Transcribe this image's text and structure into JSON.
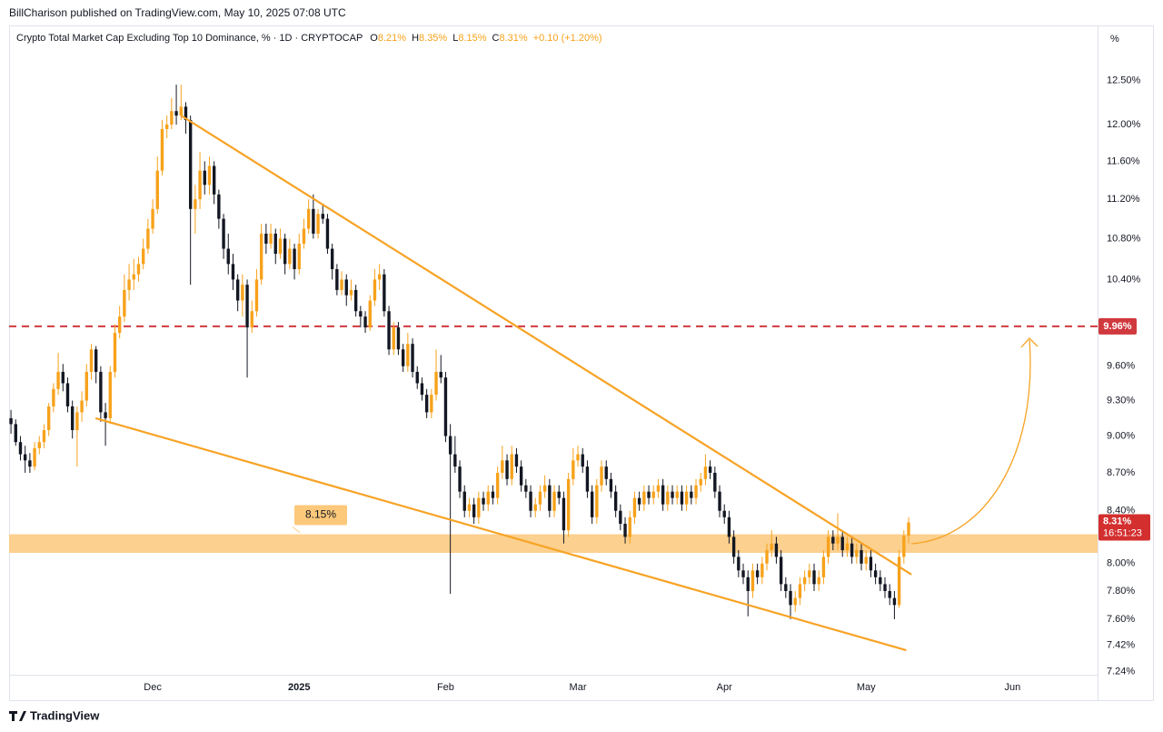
{
  "header": {
    "author_line": "BillCharison published on TradingView.com, May 10, 2025 07:08 UTC"
  },
  "footer": {
    "brand": "TradingView"
  },
  "chart_data": {
    "type": "candlestick",
    "title": "Crypto Total Market Cap Excluding Top 10 Dominance, % · 1D · CRYPTOCAP",
    "ohlc_readout": [
      {
        "key": "O",
        "text": "8.21%"
      },
      {
        "key": "H",
        "text": "8.35%"
      },
      {
        "key": "L",
        "text": "8.15%"
      },
      {
        "key": "C",
        "text": "8.31%"
      }
    ],
    "change": "+0.10 (+1.20%)",
    "y_unit": "%",
    "up_color": "#f7a21b",
    "down_color": "#131722",
    "log_scale": true,
    "grid": false,
    "ylim": [
      7.22,
      13.15
    ],
    "yticks": [
      {
        "value": 12.5,
        "label": "12.50%"
      },
      {
        "value": 12,
        "label": "12.00%"
      },
      {
        "value": 11.6,
        "label": "11.60%"
      },
      {
        "value": 11.2,
        "label": "11.20%"
      },
      {
        "value": 10.8,
        "label": "10.80%"
      },
      {
        "value": 10.4,
        "label": "10.40%"
      },
      {
        "value": 9.6,
        "label": "9.60%"
      },
      {
        "value": 9.3,
        "label": "9.30%"
      },
      {
        "value": 9,
        "label": "9.00%"
      },
      {
        "value": 8.7,
        "label": "8.70%"
      },
      {
        "value": 8.4,
        "label": "8.40%"
      },
      {
        "value": 8,
        "label": "8.00%"
      },
      {
        "value": 7.8,
        "label": "7.80%"
      },
      {
        "value": 7.6,
        "label": "7.60%"
      },
      {
        "value": 7.42,
        "label": "7.42%"
      },
      {
        "value": 7.24,
        "label": "7.24%"
      }
    ],
    "xlim": [
      -0.4,
      230
    ],
    "xticks": [
      {
        "value": 30,
        "label": "Dec"
      },
      {
        "value": 61,
        "label": "2025"
      },
      {
        "value": 92,
        "label": "Feb"
      },
      {
        "value": 120,
        "label": "Mar"
      },
      {
        "value": 151,
        "label": "Apr"
      },
      {
        "value": 181,
        "label": "May"
      },
      {
        "value": 212,
        "label": "Jun"
      }
    ],
    "resistance": {
      "value": 9.96,
      "label": "9.96%",
      "color": "#d0393e"
    },
    "zone": {
      "value": 8.15,
      "label": "8.15%",
      "low": 8.08,
      "high": 8.22,
      "color": "#fcc87a"
    },
    "last_price": {
      "value": 8.31,
      "label": "8.31%",
      "countdown": "16:51:23",
      "color": "#d32f2f"
    },
    "trendlines": [
      {
        "start": [
          36,
          12.1
        ],
        "end": [
          190.6,
          7.92
        ],
        "color": "#f7a325"
      },
      {
        "start": [
          17.9,
          9.15
        ],
        "end": [
          189.5,
          7.385
        ],
        "color": "#f7a325"
      }
    ],
    "ohlc": [
      [
        9.15,
        9.22,
        9.02,
        9.1
      ],
      [
        9.1,
        9.14,
        8.92,
        8.95
      ],
      [
        8.95,
        9.0,
        8.8,
        8.85
      ],
      [
        8.85,
        8.92,
        8.7,
        8.8
      ],
      [
        8.8,
        8.86,
        8.7,
        8.75
      ],
      [
        8.75,
        8.95,
        8.72,
        8.9
      ],
      [
        8.9,
        9.0,
        8.85,
        8.95
      ],
      [
        8.95,
        9.1,
        8.9,
        9.05
      ],
      [
        9.05,
        9.28,
        9.0,
        9.25
      ],
      [
        9.25,
        9.45,
        9.2,
        9.4
      ],
      [
        9.4,
        9.72,
        9.35,
        9.55
      ],
      [
        9.55,
        9.62,
        9.38,
        9.45
      ],
      [
        9.45,
        9.5,
        9.2,
        9.25
      ],
      [
        9.25,
        9.3,
        8.98,
        9.05
      ],
      [
        9.05,
        9.25,
        8.75,
        9.2
      ],
      [
        9.2,
        9.38,
        9.12,
        9.3
      ],
      [
        9.3,
        9.62,
        9.25,
        9.55
      ],
      [
        9.55,
        9.8,
        9.48,
        9.75
      ],
      [
        9.75,
        9.78,
        9.45,
        9.55
      ],
      [
        9.55,
        9.6,
        9.12,
        9.2
      ],
      [
        9.2,
        9.28,
        8.92,
        9.15
      ],
      [
        9.15,
        9.6,
        9.1,
        9.55
      ],
      [
        9.55,
        9.98,
        9.5,
        9.9
      ],
      [
        9.9,
        10.15,
        9.85,
        10.05
      ],
      [
        10.05,
        10.45,
        10.0,
        10.3
      ],
      [
        10.3,
        10.55,
        10.2,
        10.4
      ],
      [
        10.4,
        10.6,
        10.3,
        10.45
      ],
      [
        10.45,
        10.62,
        10.38,
        10.55
      ],
      [
        10.55,
        10.8,
        10.5,
        10.7
      ],
      [
        10.7,
        11.0,
        10.65,
        10.9
      ],
      [
        10.9,
        11.2,
        10.85,
        11.1
      ],
      [
        11.1,
        11.65,
        11.05,
        11.5
      ],
      [
        11.5,
        12.05,
        11.45,
        11.95
      ],
      [
        11.95,
        12.1,
        11.85,
        12.0
      ],
      [
        12.0,
        12.3,
        11.95,
        12.15
      ],
      [
        12.15,
        12.45,
        12.0,
        12.1
      ],
      [
        12.1,
        12.45,
        12.05,
        12.2
      ],
      [
        12.2,
        12.25,
        11.9,
        12.05
      ],
      [
        12.05,
        12.1,
        10.35,
        11.1
      ],
      [
        11.1,
        11.35,
        10.85,
        11.2
      ],
      [
        11.2,
        11.7,
        11.1,
        11.5
      ],
      [
        11.5,
        11.6,
        11.25,
        11.35
      ],
      [
        11.35,
        11.65,
        11.25,
        11.55
      ],
      [
        11.55,
        11.6,
        11.15,
        11.25
      ],
      [
        11.25,
        11.3,
        10.9,
        11.0
      ],
      [
        11.0,
        11.05,
        10.6,
        10.7
      ],
      [
        10.7,
        10.85,
        10.45,
        10.55
      ],
      [
        10.55,
        10.65,
        10.3,
        10.4
      ],
      [
        10.4,
        10.45,
        10.1,
        10.2
      ],
      [
        10.2,
        10.45,
        10.05,
        10.35
      ],
      [
        10.35,
        10.4,
        9.5,
        9.95
      ],
      [
        9.95,
        10.2,
        9.9,
        10.1
      ],
      [
        10.1,
        10.5,
        10.05,
        10.4
      ],
      [
        10.4,
        10.95,
        10.35,
        10.85
      ],
      [
        10.85,
        10.95,
        10.65,
        10.75
      ],
      [
        10.75,
        10.95,
        10.7,
        10.85
      ],
      [
        10.85,
        10.9,
        10.55,
        10.65
      ],
      [
        10.65,
        10.9,
        10.6,
        10.8
      ],
      [
        10.8,
        10.85,
        10.45,
        10.55
      ],
      [
        10.55,
        10.8,
        10.5,
        10.7
      ],
      [
        10.7,
        10.75,
        10.4,
        10.5
      ],
      [
        10.5,
        10.85,
        10.45,
        10.75
      ],
      [
        10.75,
        11.0,
        10.7,
        10.9
      ],
      [
        10.9,
        11.2,
        10.85,
        11.1
      ],
      [
        11.1,
        11.25,
        10.8,
        10.85
      ],
      [
        10.85,
        11.1,
        10.8,
        11.05
      ],
      [
        11.05,
        11.15,
        10.95,
        11.0
      ],
      [
        11.0,
        11.05,
        10.65,
        10.7
      ],
      [
        10.7,
        10.75,
        10.4,
        10.5
      ],
      [
        10.5,
        10.55,
        10.25,
        10.3
      ],
      [
        10.3,
        10.48,
        10.25,
        10.4
      ],
      [
        10.4,
        10.45,
        10.15,
        10.25
      ],
      [
        10.25,
        10.4,
        10.2,
        10.3
      ],
      [
        10.3,
        10.35,
        10.05,
        10.1
      ],
      [
        10.1,
        10.15,
        9.95,
        10.05
      ],
      [
        10.05,
        10.1,
        9.9,
        9.95
      ],
      [
        9.95,
        10.25,
        9.92,
        10.2
      ],
      [
        10.2,
        10.5,
        10.15,
        10.4
      ],
      [
        10.4,
        10.55,
        10.3,
        10.45
      ],
      [
        10.45,
        10.5,
        10.05,
        10.1
      ],
      [
        10.1,
        10.15,
        9.7,
        9.75
      ],
      [
        9.75,
        10.0,
        9.7,
        9.95
      ],
      [
        9.95,
        10.0,
        9.7,
        9.75
      ],
      [
        9.75,
        9.8,
        9.55,
        9.6
      ],
      [
        9.6,
        9.9,
        9.55,
        9.8
      ],
      [
        9.8,
        9.85,
        9.5,
        9.55
      ],
      [
        9.55,
        9.6,
        9.4,
        9.45
      ],
      [
        9.45,
        9.5,
        9.3,
        9.35
      ],
      [
        9.35,
        9.4,
        9.15,
        9.2
      ],
      [
        9.2,
        9.4,
        9.15,
        9.35
      ],
      [
        9.35,
        9.75,
        9.3,
        9.55
      ],
      [
        9.55,
        9.7,
        9.45,
        9.5
      ],
      [
        9.5,
        9.55,
        8.95,
        9.0
      ],
      [
        9.0,
        9.1,
        7.78,
        8.85
      ],
      [
        8.85,
        9.0,
        8.7,
        8.75
      ],
      [
        8.75,
        8.8,
        8.5,
        8.55
      ],
      [
        8.55,
        8.6,
        8.35,
        8.4
      ],
      [
        8.4,
        8.5,
        8.35,
        8.45
      ],
      [
        8.45,
        8.5,
        8.3,
        8.35
      ],
      [
        8.35,
        8.55,
        8.3,
        8.5
      ],
      [
        8.5,
        8.55,
        8.4,
        8.45
      ],
      [
        8.45,
        8.6,
        8.4,
        8.55
      ],
      [
        8.55,
        8.6,
        8.45,
        8.5
      ],
      [
        8.5,
        8.75,
        8.45,
        8.7
      ],
      [
        8.7,
        8.92,
        8.65,
        8.8
      ],
      [
        8.8,
        8.85,
        8.6,
        8.65
      ],
      [
        8.65,
        8.92,
        8.6,
        8.85
      ],
      [
        8.85,
        8.9,
        8.7,
        8.75
      ],
      [
        8.75,
        8.8,
        8.55,
        8.6
      ],
      [
        8.6,
        8.65,
        8.5,
        8.55
      ],
      [
        8.55,
        8.6,
        8.35,
        8.4
      ],
      [
        8.4,
        8.5,
        8.35,
        8.45
      ],
      [
        8.45,
        8.6,
        8.4,
        8.55
      ],
      [
        8.55,
        8.68,
        8.5,
        8.6
      ],
      [
        8.6,
        8.65,
        8.35,
        8.4
      ],
      [
        8.4,
        8.6,
        8.35,
        8.55
      ],
      [
        8.55,
        8.6,
        8.45,
        8.5
      ],
      [
        8.5,
        8.55,
        8.15,
        8.25
      ],
      [
        8.25,
        8.7,
        8.2,
        8.65
      ],
      [
        8.65,
        8.9,
        8.6,
        8.8
      ],
      [
        8.8,
        8.92,
        8.75,
        8.85
      ],
      [
        8.85,
        8.9,
        8.7,
        8.75
      ],
      [
        8.75,
        8.8,
        8.5,
        8.55
      ],
      [
        8.55,
        8.6,
        8.3,
        8.35
      ],
      [
        8.35,
        8.65,
        8.3,
        8.6
      ],
      [
        8.6,
        8.8,
        8.55,
        8.75
      ],
      [
        8.75,
        8.8,
        8.6,
        8.65
      ],
      [
        8.65,
        8.7,
        8.5,
        8.55
      ],
      [
        8.55,
        8.6,
        8.35,
        8.4
      ],
      [
        8.4,
        8.45,
        8.25,
        8.3
      ],
      [
        8.3,
        8.35,
        8.15,
        8.2
      ],
      [
        8.2,
        8.4,
        8.15,
        8.35
      ],
      [
        8.35,
        8.55,
        8.3,
        8.5
      ],
      [
        8.5,
        8.55,
        8.4,
        8.45
      ],
      [
        8.45,
        8.6,
        8.4,
        8.55
      ],
      [
        8.55,
        8.6,
        8.45,
        8.5
      ],
      [
        8.5,
        8.6,
        8.45,
        8.55
      ],
      [
        8.55,
        8.65,
        8.5,
        8.6
      ],
      [
        8.6,
        8.65,
        8.4,
        8.45
      ],
      [
        8.45,
        8.6,
        8.4,
        8.55
      ],
      [
        8.55,
        8.6,
        8.45,
        8.5
      ],
      [
        8.5,
        8.6,
        8.45,
        8.55
      ],
      [
        8.55,
        8.6,
        8.4,
        8.45
      ],
      [
        8.45,
        8.6,
        8.4,
        8.55
      ],
      [
        8.55,
        8.6,
        8.45,
        8.5
      ],
      [
        8.5,
        8.65,
        8.45,
        8.6
      ],
      [
        8.6,
        8.7,
        8.55,
        8.65
      ],
      [
        8.65,
        8.85,
        8.6,
        8.75
      ],
      [
        8.75,
        8.8,
        8.65,
        8.7
      ],
      [
        8.7,
        8.75,
        8.5,
        8.55
      ],
      [
        8.55,
        8.6,
        8.35,
        8.4
      ],
      [
        8.4,
        8.45,
        8.3,
        8.35
      ],
      [
        8.35,
        8.4,
        8.15,
        8.2
      ],
      [
        8.2,
        8.25,
        8.0,
        8.05
      ],
      [
        8.05,
        8.1,
        7.9,
        7.95
      ],
      [
        7.95,
        8.0,
        7.85,
        7.9
      ],
      [
        7.9,
        7.95,
        7.62,
        7.8
      ],
      [
        7.8,
        8.0,
        7.75,
        7.95
      ],
      [
        7.95,
        8.0,
        7.85,
        7.9
      ],
      [
        7.9,
        8.05,
        7.85,
        8.0
      ],
      [
        8.0,
        8.15,
        7.95,
        8.1
      ],
      [
        8.1,
        8.25,
        8.05,
        8.15
      ],
      [
        8.15,
        8.2,
        8.0,
        8.05
      ],
      [
        8.05,
        8.1,
        7.8,
        7.85
      ],
      [
        7.85,
        7.9,
        7.75,
        7.8
      ],
      [
        7.8,
        7.85,
        7.6,
        7.7
      ],
      [
        7.7,
        7.8,
        7.65,
        7.75
      ],
      [
        7.75,
        7.9,
        7.7,
        7.85
      ],
      [
        7.85,
        7.95,
        7.8,
        7.9
      ],
      [
        7.9,
        8.0,
        7.85,
        7.95
      ],
      [
        7.95,
        8.0,
        7.8,
        7.85
      ],
      [
        7.85,
        7.95,
        7.8,
        7.9
      ],
      [
        7.9,
        8.1,
        7.85,
        8.05
      ],
      [
        8.05,
        8.25,
        8.0,
        8.2
      ],
      [
        8.2,
        8.25,
        8.1,
        8.15
      ],
      [
        8.15,
        8.38,
        8.1,
        8.2
      ],
      [
        8.2,
        8.25,
        8.05,
        8.1
      ],
      [
        8.1,
        8.2,
        8.05,
        8.15
      ],
      [
        8.15,
        8.2,
        8.0,
        8.05
      ],
      [
        8.05,
        8.15,
        8.0,
        8.1
      ],
      [
        8.1,
        8.15,
        7.95,
        8.0
      ],
      [
        8.0,
        8.1,
        7.95,
        8.05
      ],
      [
        8.05,
        8.1,
        7.9,
        7.95
      ],
      [
        7.95,
        8.0,
        7.85,
        7.9
      ],
      [
        7.9,
        7.95,
        7.8,
        7.85
      ],
      [
        7.85,
        7.9,
        7.75,
        7.8
      ],
      [
        7.8,
        7.85,
        7.7,
        7.75
      ],
      [
        7.75,
        7.8,
        7.6,
        7.7
      ],
      [
        7.7,
        8.1,
        7.68,
        8.05
      ],
      [
        8.05,
        8.25,
        8.0,
        8.21
      ],
      [
        8.21,
        8.35,
        8.15,
        8.31
      ]
    ]
  }
}
